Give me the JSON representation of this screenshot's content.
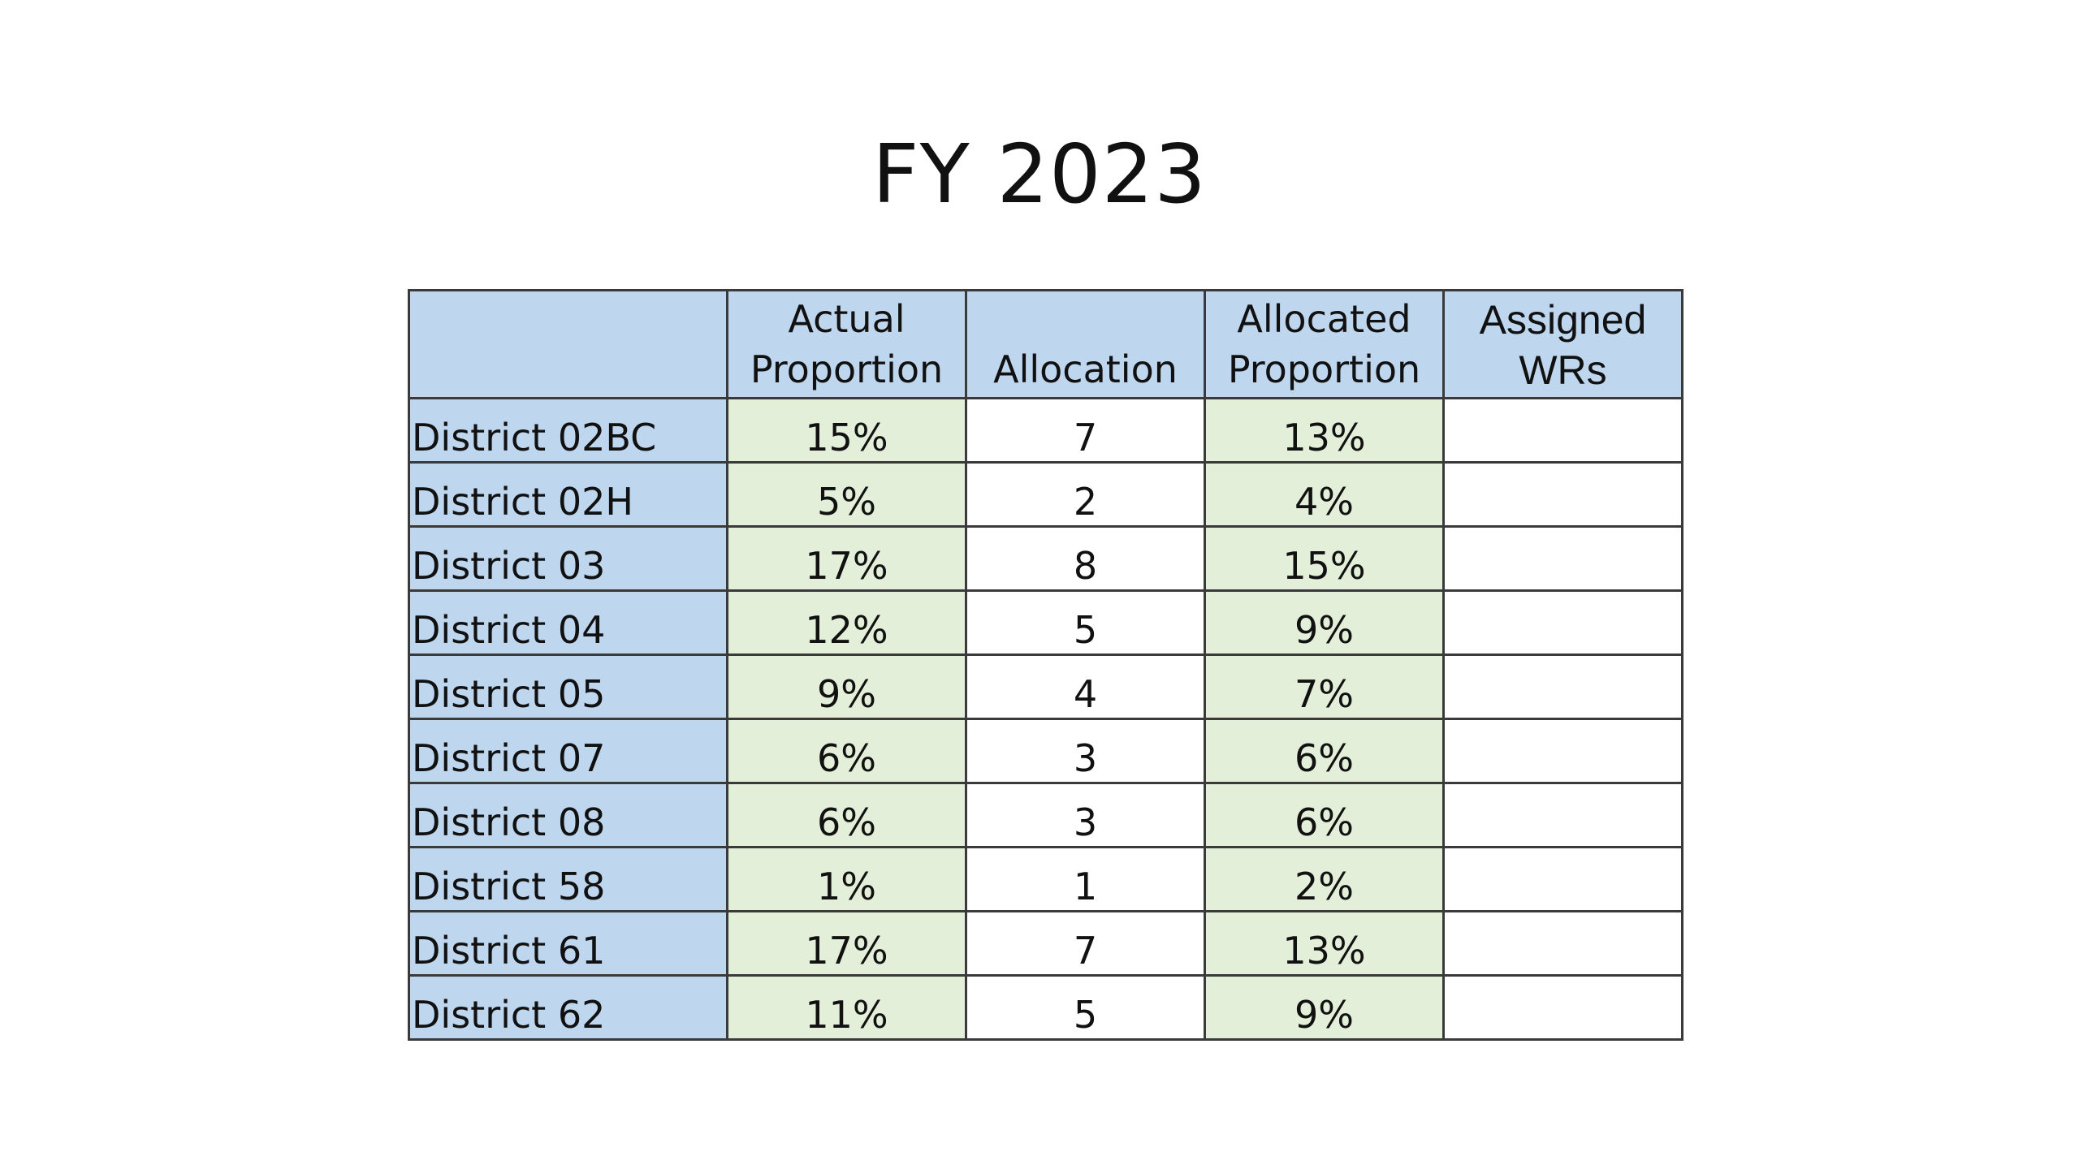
{
  "slide": {
    "title": "FY 2023"
  },
  "table": {
    "headers": {
      "district": "",
      "actual_line1": "Actual",
      "actual_line2": "Proportion",
      "allocation": "Allocation",
      "allocated_line1": "Allocated",
      "allocated_line2": "Proportion",
      "assigned_line1": "Assigned",
      "assigned_line2": "WRs"
    },
    "rows": [
      {
        "district": "District 02BC",
        "actual": "15%",
        "allocation": "7",
        "allocated": "13%",
        "assigned": ""
      },
      {
        "district": "District 02H",
        "actual": "5%",
        "allocation": "2",
        "allocated": "4%",
        "assigned": ""
      },
      {
        "district": "District 03",
        "actual": "17%",
        "allocation": "8",
        "allocated": "15%",
        "assigned": ""
      },
      {
        "district": "District 04",
        "actual": "12%",
        "allocation": "5",
        "allocated": "9%",
        "assigned": ""
      },
      {
        "district": "District 05",
        "actual": "9%",
        "allocation": "4",
        "allocated": "7%",
        "assigned": ""
      },
      {
        "district": "District 07",
        "actual": "6%",
        "allocation": "3",
        "allocated": "6%",
        "assigned": ""
      },
      {
        "district": "District 08",
        "actual": "6%",
        "allocation": "3",
        "allocated": "6%",
        "assigned": ""
      },
      {
        "district": "District 58",
        "actual": "1%",
        "allocation": "1",
        "allocated": "2%",
        "assigned": ""
      },
      {
        "district": "District 61",
        "actual": "17%",
        "allocation": "7",
        "allocated": "13%",
        "assigned": ""
      },
      {
        "district": "District 62",
        "actual": "11%",
        "allocation": "5",
        "allocated": "9%",
        "assigned": ""
      }
    ]
  },
  "colors": {
    "header_fill": "#bed6ee",
    "district_fill": "#bed6ee",
    "proportion_fill": "#e3efd9",
    "plain_fill": "#ffffff",
    "border": "#3a3a3a"
  }
}
